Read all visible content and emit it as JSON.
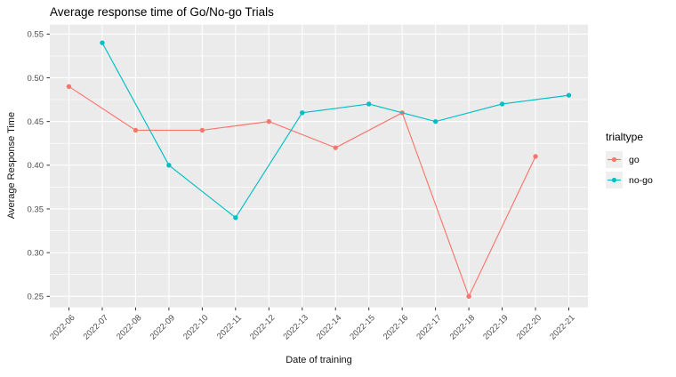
{
  "chart_data": {
    "type": "line",
    "title": "Average response time of Go/No-go Trials",
    "xlabel": "Date of training",
    "ylabel": "Average Response Time",
    "legend_title": "trialtype",
    "legend_position": "right",
    "categories": [
      "2022-06",
      "2022-07",
      "2022-08",
      "2022-09",
      "2022-10",
      "2022-11",
      "2022-12",
      "2022-13",
      "2022-14",
      "2022-15",
      "2022-16",
      "2022-17",
      "2022-18",
      "2022-19",
      "2022-20",
      "2022-21"
    ],
    "y_ticks": [
      0.25,
      0.3,
      0.35,
      0.4,
      0.45,
      0.5,
      0.55
    ],
    "y_tick_labels": [
      "0.25",
      "0.30",
      "0.35",
      "0.40",
      "0.45",
      "0.50",
      "0.55"
    ],
    "y_minor_ticks": [
      0.275,
      0.325,
      0.375,
      0.425,
      0.475,
      0.525
    ],
    "ylim": [
      0.2374,
      0.5608
    ],
    "grid": "major-x, major-y, minor-y (white on grey panel)",
    "series": [
      {
        "name": "go",
        "color": "#F8766D",
        "points": [
          [
            "2022-06",
            0.49
          ],
          [
            "2022-08",
            0.44
          ],
          [
            "2022-10",
            0.44
          ],
          [
            "2022-12",
            0.45
          ],
          [
            "2022-14",
            0.42
          ],
          [
            "2022-16",
            0.46
          ],
          [
            "2022-18",
            0.25
          ],
          [
            "2022-20",
            0.41
          ]
        ]
      },
      {
        "name": "no-go",
        "color": "#00BFC4",
        "points": [
          [
            "2022-07",
            0.54
          ],
          [
            "2022-09",
            0.4
          ],
          [
            "2022-11",
            0.34
          ],
          [
            "2022-13",
            0.46
          ],
          [
            "2022-15",
            0.47
          ],
          [
            "2022-17",
            0.45
          ],
          [
            "2022-19",
            0.47
          ],
          [
            "2022-21",
            0.48
          ]
        ]
      }
    ],
    "colors": {
      "panel_background": "#EBEBEB",
      "gridline": "#FFFFFF",
      "axis_text": "#4D4D4D",
      "tick_mark": "#333333",
      "legend_key_background": "#EFEFEF",
      "title_text": "#000000"
    }
  }
}
